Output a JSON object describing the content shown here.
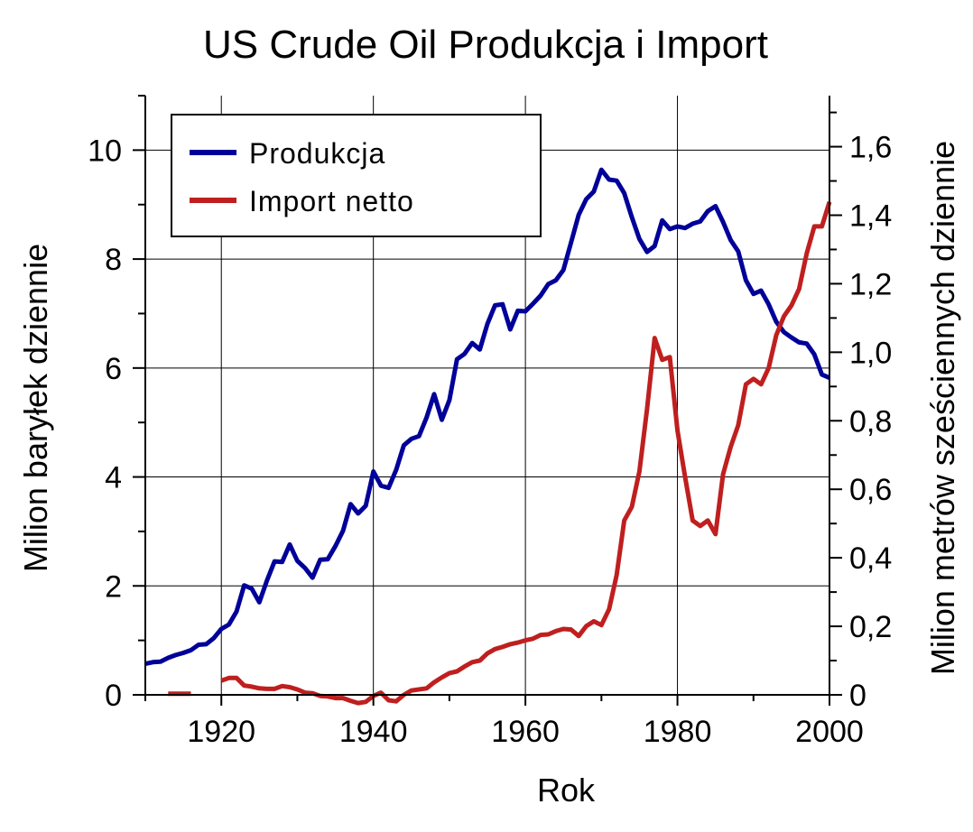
{
  "chart_data": {
    "type": "line",
    "title": "US Crude Oil Produkcja i Import",
    "xlabel": "Rok",
    "ylabel": "Milion baryłek dziennie",
    "y2label": "Milion metrów sześciennych dziennie",
    "xlim": [
      1910,
      2000
    ],
    "ylim": [
      0,
      11
    ],
    "y2lim": [
      0,
      1.749
    ],
    "grid": true,
    "legend_position": "top-left",
    "x_ticks": [
      1920,
      1940,
      1960,
      1980,
      2000
    ],
    "x_tick_labels": [
      "1920",
      "1940",
      "1960",
      "1980",
      "2000"
    ],
    "y_ticks": [
      0,
      2,
      4,
      6,
      8,
      10
    ],
    "y_tick_labels": [
      "0",
      "2",
      "4",
      "6",
      "8",
      "10"
    ],
    "y2_ticks": [
      0,
      0.2,
      0.4,
      0.6,
      0.8,
      1.0,
      1.2,
      1.4,
      1.6
    ],
    "y2_tick_labels": [
      "0",
      "0,2",
      "0,4",
      "0,6",
      "0,8",
      "1,0",
      "1,2",
      "1,4",
      "1,6"
    ],
    "series": [
      {
        "name": "Produkcja",
        "color": "#000099",
        "x": [
          1910,
          1911,
          1912,
          1913,
          1914,
          1915,
          1916,
          1917,
          1918,
          1919,
          1920,
          1921,
          1922,
          1923,
          1924,
          1925,
          1926,
          1927,
          1928,
          1929,
          1930,
          1931,
          1932,
          1933,
          1934,
          1935,
          1936,
          1937,
          1938,
          1939,
          1940,
          1941,
          1942,
          1943,
          1944,
          1945,
          1946,
          1947,
          1948,
          1949,
          1950,
          1951,
          1952,
          1953,
          1954,
          1955,
          1956,
          1957,
          1958,
          1959,
          1960,
          1961,
          1962,
          1963,
          1964,
          1965,
          1966,
          1967,
          1968,
          1969,
          1970,
          1971,
          1972,
          1973,
          1974,
          1975,
          1976,
          1977,
          1978,
          1979,
          1980,
          1981,
          1982,
          1983,
          1984,
          1985,
          1986,
          1987,
          1988,
          1989,
          1990,
          1991,
          1992,
          1993,
          1994,
          1995,
          1996,
          1997,
          1998,
          1999,
          2000
        ],
        "values": [
          0.57,
          0.6,
          0.61,
          0.68,
          0.73,
          0.77,
          0.82,
          0.92,
          0.93,
          1.04,
          1.21,
          1.29,
          1.53,
          2.01,
          1.95,
          1.7,
          2.1,
          2.45,
          2.44,
          2.76,
          2.46,
          2.33,
          2.15,
          2.48,
          2.49,
          2.73,
          3.01,
          3.5,
          3.33,
          3.47,
          4.1,
          3.84,
          3.8,
          4.13,
          4.58,
          4.7,
          4.75,
          5.09,
          5.52,
          5.05,
          5.41,
          6.16,
          6.26,
          6.46,
          6.34,
          6.81,
          7.15,
          7.17,
          6.71,
          7.05,
          7.04,
          7.18,
          7.33,
          7.54,
          7.61,
          7.8,
          8.3,
          8.81,
          9.1,
          9.24,
          9.64,
          9.46,
          9.44,
          9.21,
          8.77,
          8.37,
          8.13,
          8.24,
          8.71,
          8.55,
          8.6,
          8.57,
          8.65,
          8.69,
          8.88,
          8.97,
          8.68,
          8.35,
          8.14,
          7.61,
          7.36,
          7.42,
          7.17,
          6.85,
          6.66,
          6.56,
          6.47,
          6.45,
          6.25,
          5.88,
          5.82
        ]
      },
      {
        "name": "Import netto",
        "color": "#bf1f1f",
        "segments": [
          {
            "x": [
              1913,
              1914,
              1915,
              1916
            ],
            "values": [
              0.02,
              0.02,
              0.02,
              0.02
            ]
          },
          {
            "x": [
              1920,
              1921,
              1922,
              1923,
              1924,
              1925,
              1926,
              1927,
              1928,
              1929,
              1930,
              1931,
              1932,
              1933,
              1934,
              1935,
              1936,
              1937,
              1938,
              1939,
              1940,
              1941,
              1942,
              1943,
              1944,
              1945,
              1946,
              1947,
              1948,
              1949,
              1950,
              1951,
              1952,
              1953,
              1954,
              1955,
              1956,
              1957,
              1958,
              1959,
              1960,
              1961,
              1962,
              1963,
              1964,
              1965,
              1966,
              1967,
              1968,
              1969,
              1970,
              1971,
              1972,
              1973,
              1974,
              1975,
              1976,
              1977,
              1978,
              1979,
              1980,
              1981,
              1982,
              1983,
              1984,
              1985,
              1986,
              1987,
              1988,
              1989,
              1990,
              1991,
              1992,
              1993,
              1994,
              1995,
              1996,
              1997,
              1998,
              1999,
              2000
            ],
            "values": [
              0.26,
              0.31,
              0.31,
              0.17,
              0.15,
              0.12,
              0.11,
              0.11,
              0.16,
              0.14,
              0.1,
              0.04,
              0.03,
              -0.02,
              -0.03,
              -0.06,
              -0.06,
              -0.11,
              -0.15,
              -0.13,
              -0.02,
              0.04,
              -0.1,
              -0.12,
              0.0,
              0.08,
              0.1,
              0.12,
              0.23,
              0.32,
              0.4,
              0.43,
              0.52,
              0.6,
              0.63,
              0.76,
              0.84,
              0.88,
              0.93,
              0.96,
              1.0,
              1.03,
              1.1,
              1.11,
              1.17,
              1.21,
              1.2,
              1.08,
              1.26,
              1.35,
              1.28,
              1.57,
              2.2,
              3.2,
              3.45,
              4.1,
              5.25,
              6.55,
              6.15,
              6.2,
              4.85,
              4.0,
              3.2,
              3.1,
              3.2,
              2.95,
              4.05,
              4.55,
              4.95,
              5.7,
              5.8,
              5.7,
              6.0,
              6.6,
              6.95,
              7.15,
              7.45,
              8.1,
              8.6,
              8.6,
              9.05
            ]
          }
        ]
      }
    ]
  }
}
